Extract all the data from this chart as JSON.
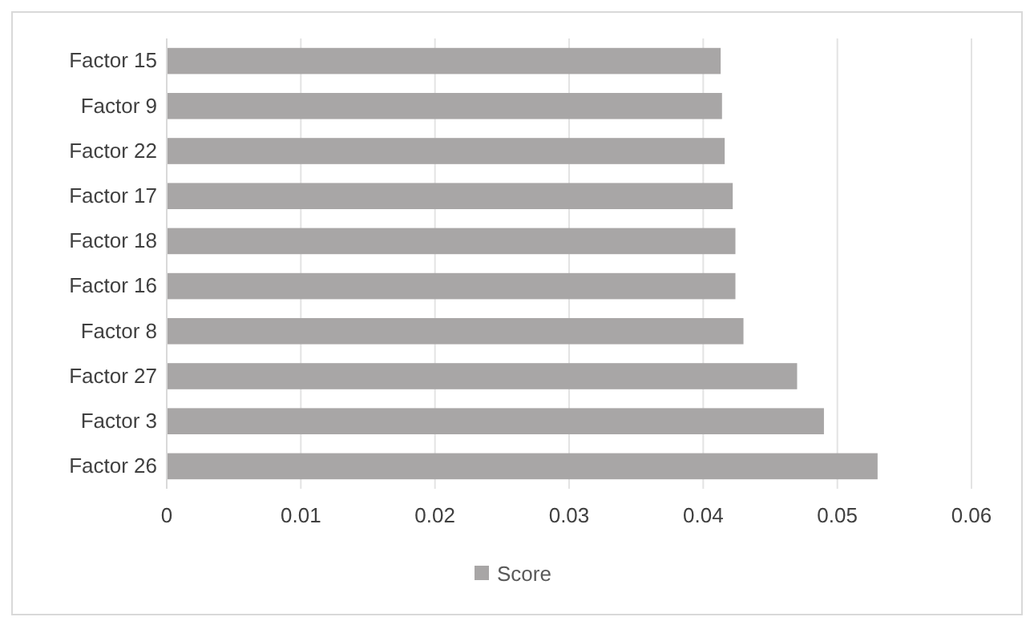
{
  "chart_data": {
    "type": "bar",
    "orientation": "horizontal",
    "categories": [
      "Factor 15",
      "Factor 9",
      "Factor 22",
      "Factor 17",
      "Factor 18",
      "Factor 16",
      "Factor 8",
      "Factor 27",
      "Factor 3",
      "Factor 26"
    ],
    "series": [
      {
        "name": "Score",
        "color": "#a8a6a6",
        "values": [
          0.0413,
          0.0414,
          0.0416,
          0.0422,
          0.0424,
          0.0424,
          0.043,
          0.047,
          0.049,
          0.053
        ]
      }
    ],
    "xlim": [
      0,
      0.06
    ],
    "xticks": [
      0,
      0.01,
      0.02,
      0.03,
      0.04,
      0.05,
      0.06
    ],
    "grid": "x",
    "legend": "bottom"
  }
}
